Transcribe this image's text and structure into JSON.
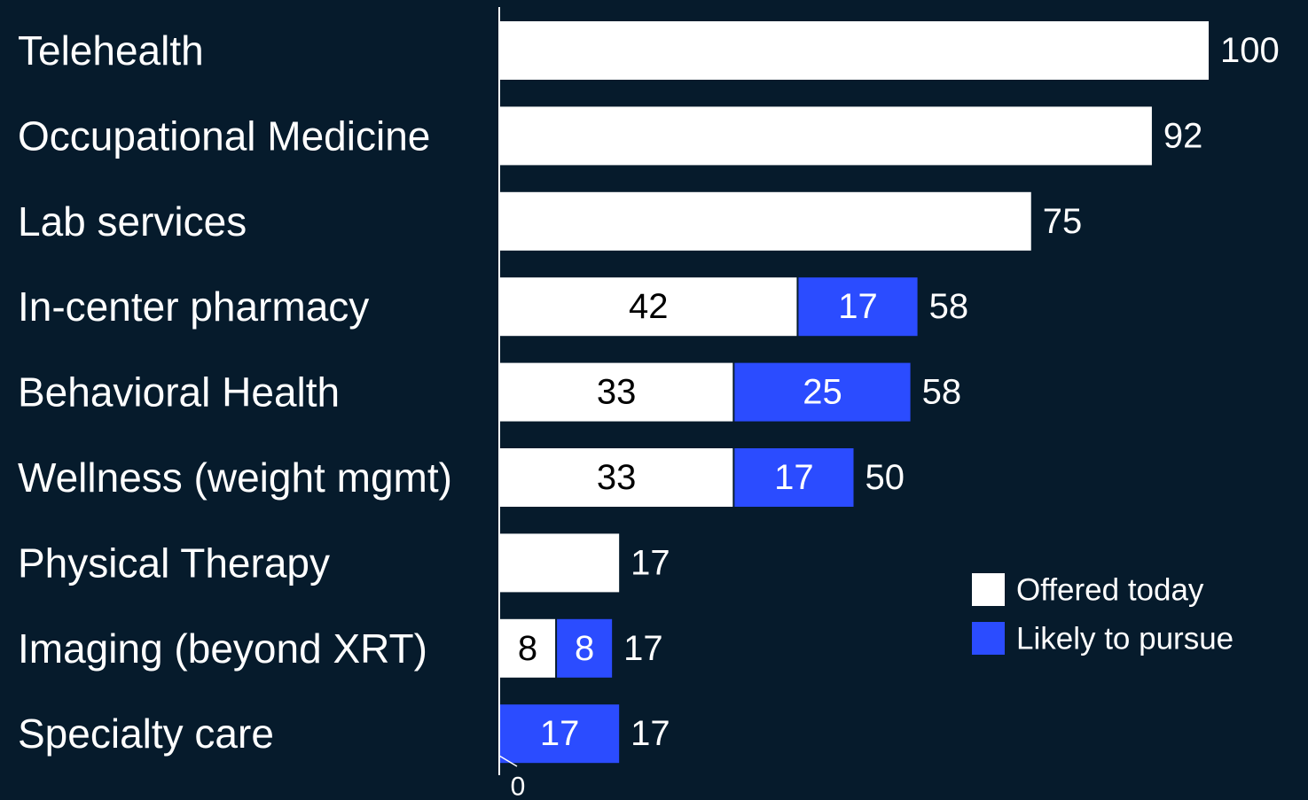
{
  "chart_data": {
    "type": "stacked-bar",
    "orientation": "horizontal",
    "categories": [
      "Telehealth",
      "Occupational Medicine",
      "Lab services",
      "In-center pharmacy",
      "Behavioral Health",
      "Wellness (weight mgmt)",
      "Physical Therapy",
      "Imaging (beyond XRT)",
      "Specialty care"
    ],
    "series": [
      {
        "name": "Offered today",
        "color": "#ffffff",
        "label_color": "#000000",
        "values": [
          100,
          92,
          75,
          42,
          33,
          33,
          17,
          8,
          null
        ],
        "value_labels": [
          null,
          null,
          null,
          "42",
          "33",
          "33",
          null,
          "8",
          null
        ]
      },
      {
        "name": "Likely to pursue",
        "color": "#2b4cff",
        "label_color": "#ffffff",
        "values": [
          null,
          null,
          null,
          17,
          25,
          17,
          null,
          8,
          17
        ],
        "value_labels": [
          null,
          null,
          null,
          "17",
          "25",
          "17",
          null,
          "8",
          "17"
        ]
      }
    ],
    "totals": [
      100,
      92,
      75,
      58,
      58,
      50,
      17,
      17,
      17
    ],
    "xlim": [
      0,
      100
    ],
    "xticks": [
      0
    ],
    "grid": false
  }
}
